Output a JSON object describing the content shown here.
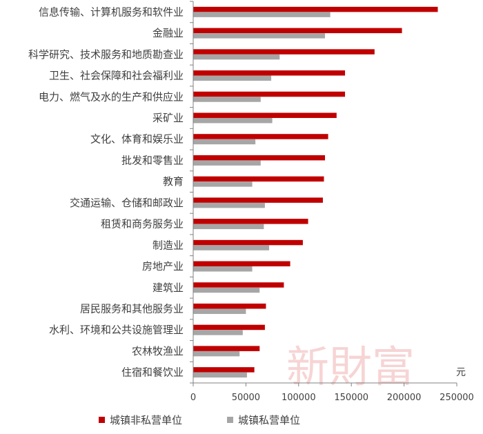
{
  "watermark": "新財富",
  "chart_data": {
    "type": "bar",
    "orientation": "horizontal",
    "categories": [
      "信息传输、计算机服务和软件业",
      "金融业",
      "科学研究、技术服务和地质勘查业",
      "卫生、社会保障和社会福利业",
      "电力、燃气及水的生产和供应业",
      "采矿业",
      "文化、体育和娱乐业",
      "批发和零售业",
      "教育",
      "交通运输、仓储和邮政业",
      "租赁和商务服务业",
      "制造业",
      "房地产业",
      "建筑业",
      "居民服务和其他服务业",
      "水利、环境和公共设施管理业",
      "农林牧渔业",
      "住宿和餐饮业"
    ],
    "series": [
      {
        "name": "城镇非私营单位",
        "color": "#c00000",
        "values": [
          232000,
          198000,
          172000,
          144000,
          144000,
          136000,
          128000,
          125000,
          124000,
          123000,
          109000,
          104000,
          92000,
          86000,
          69000,
          68000,
          63000,
          58000
        ]
      },
      {
        "name": "城镇私营单位",
        "color": "#a6a6a6",
        "values": [
          130000,
          125000,
          82000,
          74000,
          64000,
          75000,
          59000,
          64000,
          56000,
          68000,
          67000,
          72000,
          56000,
          63000,
          50000,
          47000,
          44000,
          51000
        ]
      }
    ],
    "xlim": [
      0,
      250000
    ],
    "xticks": [
      "0",
      "50000",
      "100000",
      "150000",
      "200000",
      "250000"
    ],
    "xunit": "元",
    "grid": false,
    "legend_position": "bottom"
  }
}
